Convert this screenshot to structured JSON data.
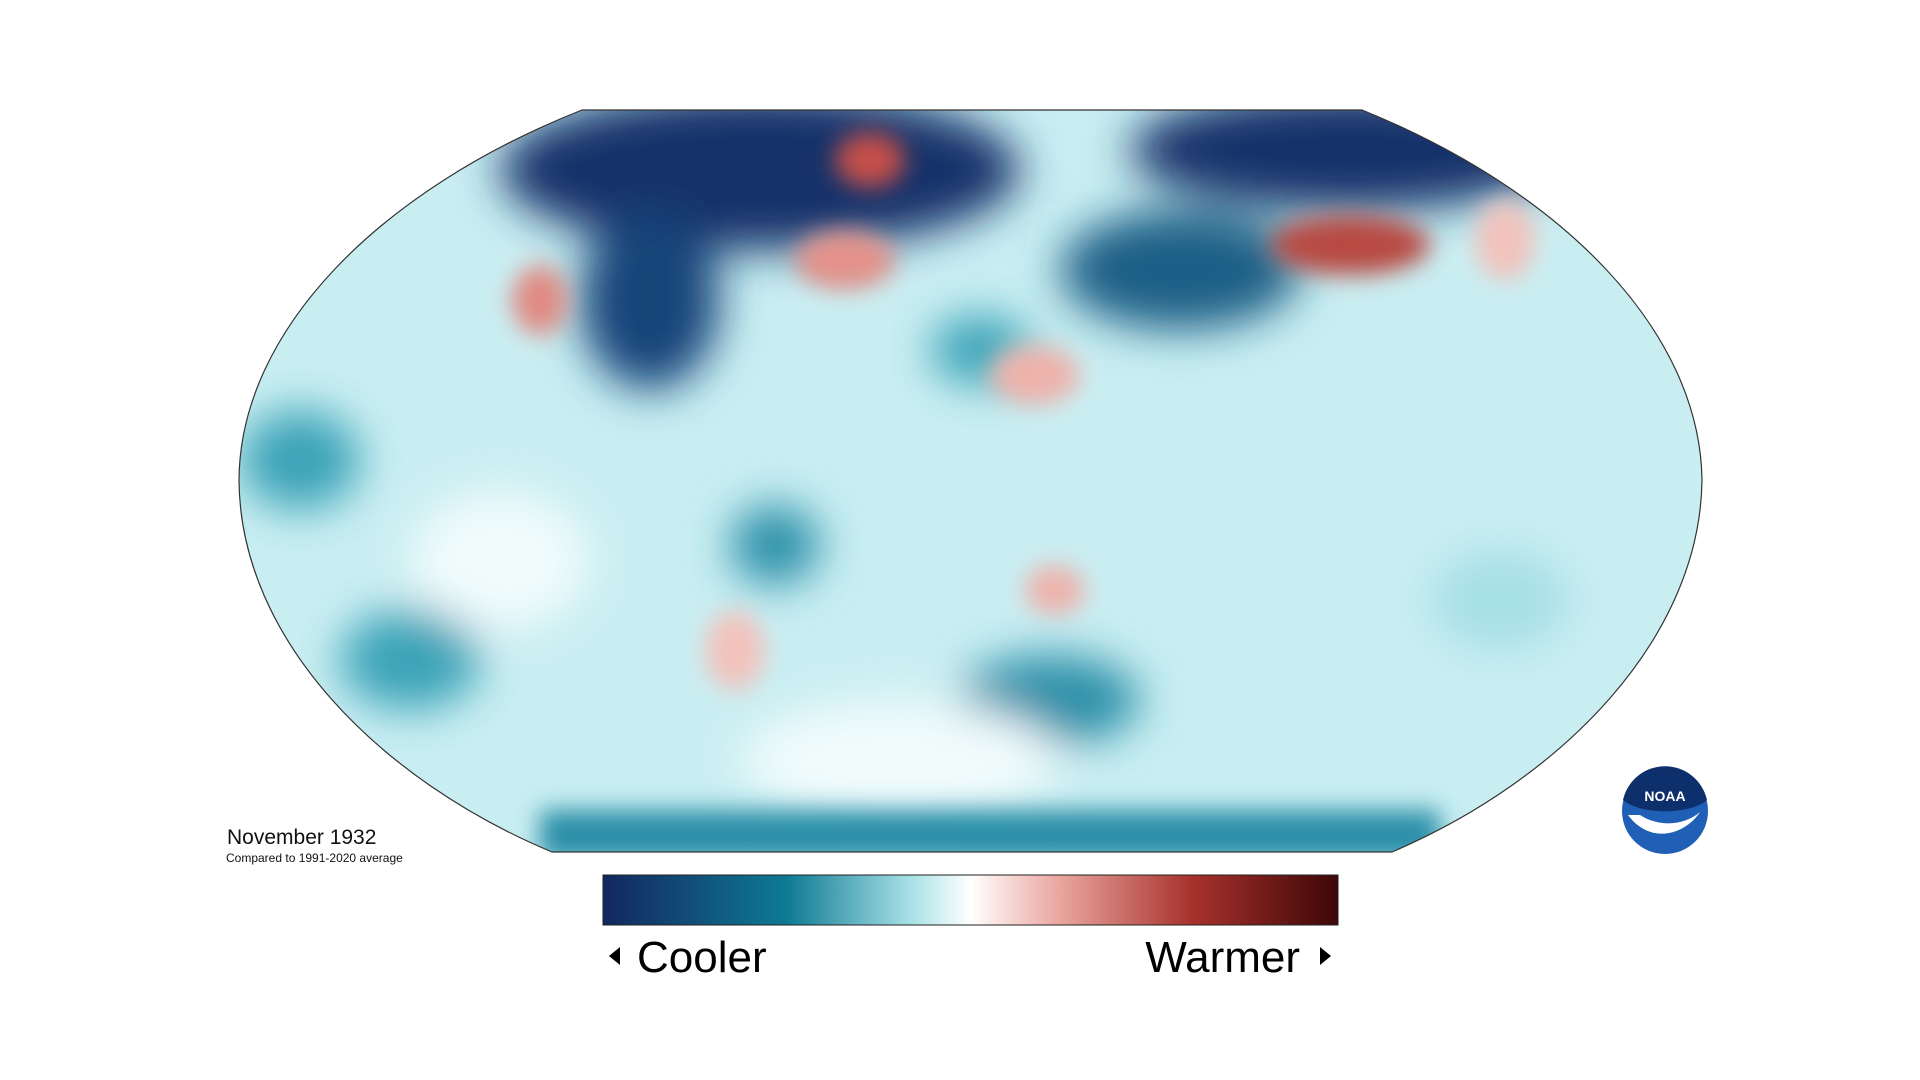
{
  "title": "November 1932",
  "subtitle": "Compared to 1991-2020 average",
  "legend": {
    "low": "Cooler",
    "high": "Warmer"
  },
  "logo": "NOAA"
}
